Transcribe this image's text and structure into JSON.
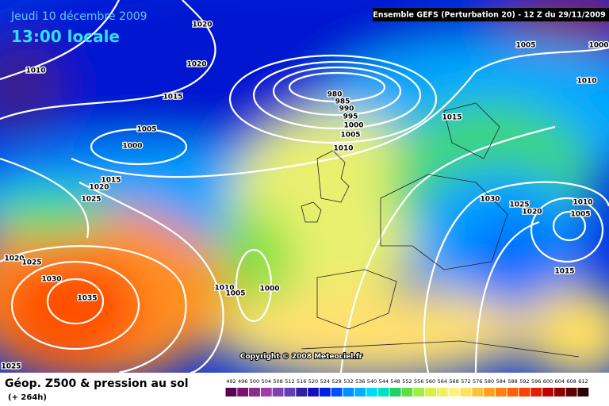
{
  "header": {
    "date": "Jeudi 10 décembre 2009",
    "time": "13:00 locale",
    "run": "Ensemble GEFS (Perturbation 20)  -  12 Z du 29/11/2009"
  },
  "isobar_labels": [
    "1020",
    "1020",
    "1010",
    "1015",
    "1005",
    "1000",
    "980",
    "985",
    "990",
    "995",
    "1000",
    "1005",
    "1010",
    "1015",
    "1005",
    "1000",
    "1010",
    "1015",
    "1020",
    "1025",
    "1030",
    "1025",
    "1020",
    "1010",
    "1005",
    "1015",
    "1020",
    "1025",
    "1030",
    "1035",
    "1010",
    "1005",
    "1000",
    "1025"
  ],
  "copyright": "Copyright © 2008 Meteociel.fr",
  "footer": {
    "title": "Géop. Z500 & pression au sol",
    "lead": "(+ 264h)"
  },
  "scale": {
    "labels": [
      492,
      496,
      500,
      504,
      508,
      512,
      516,
      520,
      524,
      528,
      532,
      536,
      540,
      544,
      548,
      552,
      556,
      560,
      564,
      568,
      572,
      576,
      580,
      584,
      588,
      592,
      596,
      600,
      604,
      608,
      612
    ],
    "colors": [
      "#5a0050",
      "#7a1070",
      "#8a2a8a",
      "#a03ca8",
      "#8040b0",
      "#6040b8",
      "#3020a0",
      "#1010c0",
      "#0020e0",
      "#0050ff",
      "#0090ff",
      "#00b0ff",
      "#00d8ff",
      "#00e0c0",
      "#20d060",
      "#60e040",
      "#a0ec40",
      "#d8f040",
      "#f0f060",
      "#fff080",
      "#ffe060",
      "#ffc040",
      "#ffa020",
      "#ff8010",
      "#ff6000",
      "#ff4000",
      "#e02000",
      "#c00000",
      "#900000",
      "#600000",
      "#300000"
    ]
  }
}
